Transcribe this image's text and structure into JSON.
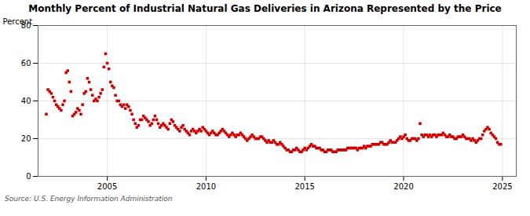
{
  "chart_data": {
    "type": "scatter",
    "title": "Monthly Percent of Industrial Natural Gas Deliveries in Arizona Represented by the Price",
    "ylabel": "Percent",
    "caption": "Source: U.S. Energy Information Administration",
    "color": "#CC0000",
    "marker": "square",
    "grid": true,
    "xlim": [
      2001.5,
      2025.7
    ],
    "xticks": [
      2005,
      2010,
      2015,
      2020,
      2025
    ],
    "ylim": [
      0,
      80
    ],
    "yticks": [
      0,
      20,
      40,
      60,
      80
    ],
    "x": [
      2001.917,
      2002.0,
      2002.083,
      2002.167,
      2002.25,
      2002.333,
      2002.417,
      2002.5,
      2002.583,
      2002.667,
      2002.75,
      2002.833,
      2002.917,
      2003.0,
      2003.083,
      2003.167,
      2003.25,
      2003.333,
      2003.417,
      2003.5,
      2003.583,
      2003.667,
      2003.75,
      2003.833,
      2003.917,
      2004.0,
      2004.083,
      2004.167,
      2004.25,
      2004.333,
      2004.417,
      2004.5,
      2004.583,
      2004.667,
      2004.75,
      2004.833,
      2004.917,
      2005.0,
      2005.083,
      2005.167,
      2005.25,
      2005.333,
      2005.417,
      2005.5,
      2005.583,
      2005.667,
      2005.75,
      2005.833,
      2005.917,
      2006.0,
      2006.083,
      2006.167,
      2006.25,
      2006.333,
      2006.417,
      2006.5,
      2006.583,
      2006.667,
      2006.75,
      2006.833,
      2006.917,
      2007.0,
      2007.083,
      2007.167,
      2007.25,
      2007.333,
      2007.417,
      2007.5,
      2007.583,
      2007.667,
      2007.75,
      2007.833,
      2007.917,
      2008.0,
      2008.083,
      2008.167,
      2008.25,
      2008.333,
      2008.417,
      2008.5,
      2008.583,
      2008.667,
      2008.75,
      2008.833,
      2008.917,
      2009.0,
      2009.083,
      2009.167,
      2009.25,
      2009.333,
      2009.417,
      2009.5,
      2009.583,
      2009.667,
      2009.75,
      2009.833,
      2009.917,
      2010.0,
      2010.083,
      2010.167,
      2010.25,
      2010.333,
      2010.417,
      2010.5,
      2010.583,
      2010.667,
      2010.75,
      2010.833,
      2010.917,
      2011.0,
      2011.083,
      2011.167,
      2011.25,
      2011.333,
      2011.417,
      2011.5,
      2011.583,
      2011.667,
      2011.75,
      2011.833,
      2011.917,
      2012.0,
      2012.083,
      2012.167,
      2012.25,
      2012.333,
      2012.417,
      2012.5,
      2012.583,
      2012.667,
      2012.75,
      2012.833,
      2012.917,
      2013.0,
      2013.083,
      2013.167,
      2013.25,
      2013.333,
      2013.417,
      2013.5,
      2013.583,
      2013.667,
      2013.75,
      2013.833,
      2013.917,
      2014.0,
      2014.083,
      2014.167,
      2014.25,
      2014.333,
      2014.417,
      2014.5,
      2014.583,
      2014.667,
      2014.75,
      2014.833,
      2014.917,
      2015.0,
      2015.083,
      2015.167,
      2015.25,
      2015.333,
      2015.417,
      2015.5,
      2015.583,
      2015.667,
      2015.75,
      2015.833,
      2015.917,
      2016.0,
      2016.083,
      2016.167,
      2016.25,
      2016.333,
      2016.417,
      2016.5,
      2016.583,
      2016.667,
      2016.75,
      2016.833,
      2016.917,
      2017.0,
      2017.083,
      2017.167,
      2017.25,
      2017.333,
      2017.417,
      2017.5,
      2017.583,
      2017.667,
      2017.75,
      2017.833,
      2017.917,
      2018.0,
      2018.083,
      2018.167,
      2018.25,
      2018.333,
      2018.417,
      2018.5,
      2018.583,
      2018.667,
      2018.75,
      2018.833,
      2018.917,
      2019.0,
      2019.083,
      2019.167,
      2019.25,
      2019.333,
      2019.417,
      2019.5,
      2019.583,
      2019.667,
      2019.75,
      2019.833,
      2019.917,
      2020.0,
      2020.083,
      2020.167,
      2020.25,
      2020.333,
      2020.417,
      2020.5,
      2020.583,
      2020.667,
      2020.75,
      2020.833,
      2020.917,
      2021.0,
      2021.083,
      2021.167,
      2021.25,
      2021.333,
      2021.417,
      2021.5,
      2021.583,
      2021.667,
      2021.75,
      2021.833,
      2021.917,
      2022.0,
      2022.083,
      2022.167,
      2022.25,
      2022.333,
      2022.417,
      2022.5,
      2022.583,
      2022.667,
      2022.75,
      2022.833,
      2022.917,
      2023.0,
      2023.083,
      2023.167,
      2023.25,
      2023.333,
      2023.417,
      2023.5,
      2023.583,
      2023.667,
      2023.75,
      2023.833,
      2023.917,
      2024.0,
      2024.083,
      2024.167,
      2024.25,
      2024.333,
      2024.417,
      2024.5,
      2024.583,
      2024.667,
      2024.75,
      2024.833,
      2024.917
    ],
    "values": [
      33,
      46,
      45,
      44,
      42,
      40,
      38,
      37,
      36,
      35,
      38,
      40,
      55,
      56,
      50,
      45,
      32,
      33,
      34,
      36,
      35,
      33,
      38,
      44,
      45,
      52,
      50,
      46,
      43,
      40,
      41,
      40,
      42,
      44,
      46,
      58,
      65,
      60,
      57,
      50,
      48,
      47,
      43,
      40,
      40,
      38,
      37,
      38,
      36,
      38,
      37,
      35,
      33,
      30,
      28,
      26,
      27,
      30,
      30,
      32,
      31,
      30,
      29,
      27,
      28,
      30,
      32,
      30,
      28,
      26,
      27,
      28,
      27,
      26,
      25,
      28,
      30,
      29,
      27,
      26,
      25,
      24,
      26,
      27,
      25,
      24,
      23,
      22,
      24,
      25,
      24,
      23,
      24,
      25,
      24,
      26,
      25,
      24,
      23,
      22,
      23,
      24,
      23,
      22,
      22,
      23,
      24,
      25,
      24,
      23,
      22,
      21,
      22,
      23,
      22,
      21,
      22,
      22,
      23,
      22,
      21,
      20,
      19,
      20,
      21,
      22,
      21,
      20,
      20,
      20,
      21,
      21,
      20,
      19,
      18,
      19,
      18,
      18,
      19,
      18,
      17,
      17,
      18,
      17,
      16,
      15,
      14,
      14,
      13,
      13,
      14,
      14,
      15,
      14,
      13,
      13,
      14,
      15,
      14,
      15,
      16,
      17,
      16,
      16,
      15,
      15,
      15,
      14,
      14,
      13,
      13,
      14,
      14,
      14,
      13,
      13,
      13,
      14,
      14,
      14,
      14,
      14,
      14,
      15,
      15,
      15,
      15,
      15,
      15,
      14,
      15,
      15,
      15,
      16,
      15,
      16,
      16,
      16,
      17,
      17,
      17,
      17,
      17,
      18,
      18,
      17,
      17,
      17,
      18,
      19,
      18,
      18,
      18,
      19,
      20,
      21,
      20,
      21,
      22,
      20,
      19,
      19,
      20,
      20,
      20,
      19,
      20,
      28,
      22,
      21,
      22,
      22,
      21,
      22,
      21,
      22,
      22,
      21,
      22,
      22,
      22,
      23,
      22,
      21,
      21,
      22,
      21,
      21,
      20,
      20,
      21,
      21,
      21,
      22,
      21,
      20,
      20,
      20,
      19,
      20,
      19,
      18,
      19,
      20,
      20,
      22,
      24,
      25,
      26,
      25,
      23,
      22,
      21,
      20,
      18,
      17,
      17
    ]
  }
}
